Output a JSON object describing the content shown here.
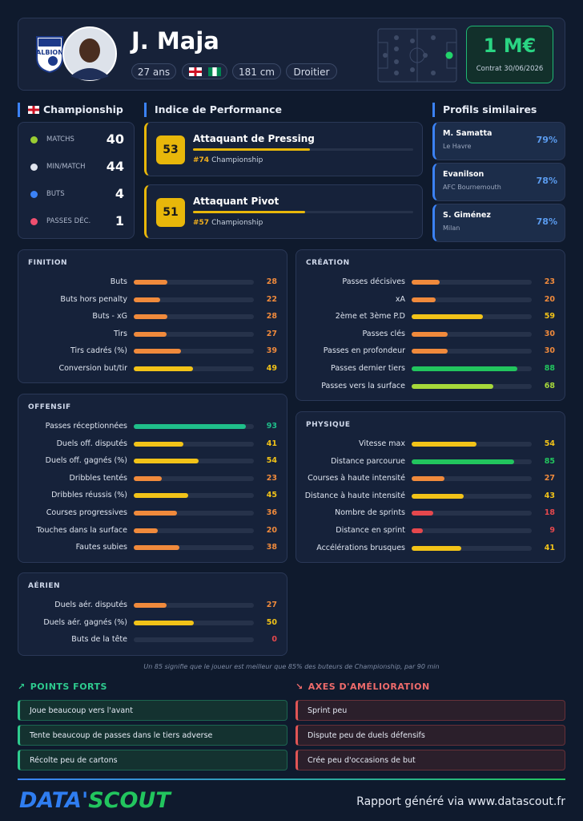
{
  "header": {
    "club_badge": "ALBION",
    "name": "J. Maja",
    "age": "27 ans",
    "height": "181 cm",
    "foot": "Droitier",
    "value": "1 M€",
    "contract": "Contrat 30/06/2026"
  },
  "league": {
    "title": "Championship",
    "stats": [
      {
        "label": "MATCHS",
        "value": 40
      },
      {
        "label": "MIN/MATCH",
        "value": 44
      },
      {
        "label": "BUTS",
        "value": 4
      },
      {
        "label": "PASSES DÉC.",
        "value": 1
      }
    ]
  },
  "performance": {
    "title": "Indice de Performance",
    "roles": [
      {
        "name": "Attaquant de Pressing",
        "score": 53,
        "rank": "#74",
        "league": "Championship"
      },
      {
        "name": "Attaquant Pivot",
        "score": 51,
        "rank": "#57",
        "league": "Championship"
      }
    ]
  },
  "similar": {
    "title": "Profils similaires",
    "players": [
      {
        "name": "M. Samatta",
        "club": "Le Havre",
        "similarity": "79%"
      },
      {
        "name": "Evanilson",
        "club": "AFC Bournemouth",
        "similarity": "78%"
      },
      {
        "name": "S. Giménez",
        "club": "Milan",
        "similarity": "78%"
      }
    ]
  },
  "sections": [
    {
      "title": "FINITION",
      "rows": [
        {
          "label": "Buts",
          "value": 28
        },
        {
          "label": "Buts hors penalty",
          "value": 22
        },
        {
          "label": "Buts - xG",
          "value": 28
        },
        {
          "label": "Tirs",
          "value": 27
        },
        {
          "label": "Tirs cadrés (%)",
          "value": 39
        },
        {
          "label": "Conversion but/tir",
          "value": 49
        }
      ]
    },
    {
      "title": "CRÉATION",
      "rows": [
        {
          "label": "Passes décisives",
          "value": 23
        },
        {
          "label": "xA",
          "value": 20
        },
        {
          "label": "2ème et 3ème P.D",
          "value": 59
        },
        {
          "label": "Passes clés",
          "value": 30
        },
        {
          "label": "Passes en profondeur",
          "value": 30
        },
        {
          "label": "Passes dernier tiers",
          "value": 88
        },
        {
          "label": "Passes vers la surface",
          "value": 68
        }
      ]
    },
    {
      "title": "OFFENSIF",
      "rows": [
        {
          "label": "Passes réceptionnées",
          "value": 93
        },
        {
          "label": "Duels off. disputés",
          "value": 41
        },
        {
          "label": "Duels off. gagnés (%)",
          "value": 54
        },
        {
          "label": "Dribbles tentés",
          "value": 23
        },
        {
          "label": "Dribbles réussis (%)",
          "value": 45
        },
        {
          "label": "Courses progressives",
          "value": 36
        },
        {
          "label": "Touches dans la surface",
          "value": 20
        },
        {
          "label": "Fautes subies",
          "value": 38
        }
      ]
    },
    {
      "title": "PHYSIQUE",
      "rows": [
        {
          "label": "Vitesse max",
          "value": 54
        },
        {
          "label": "Distance parcourue",
          "value": 85
        },
        {
          "label": "Courses à haute intensité",
          "value": 27
        },
        {
          "label": "Distance à haute intensité",
          "value": 43
        },
        {
          "label": "Nombre de sprints",
          "value": 18
        },
        {
          "label": "Distance en sprint",
          "value": 9
        },
        {
          "label": "Accélérations brusques",
          "value": 41
        }
      ]
    },
    {
      "title": "AÉRIEN",
      "rows": [
        {
          "label": "Duels aér. disputés",
          "value": 27
        },
        {
          "label": "Duels aér. gagnés (%)",
          "value": 50
        },
        {
          "label": "Buts de la tête",
          "value": 0
        }
      ]
    }
  ],
  "note": "Un 85 signifie que le joueur est meilleur que 85% des buteurs de Championship, par 90 min",
  "strengths": {
    "title": "POINTS FORTS",
    "items": [
      "Joue beaucoup vers l'avant",
      "Tente beaucoup de passes dans le tiers adverse",
      "Récolte peu de cartons"
    ]
  },
  "improvements": {
    "title": "AXES D'AMÉLIORATION",
    "items": [
      "Sprint peu",
      "Dispute peu de duels défensifs",
      "Crée peu d'occasions de but"
    ]
  },
  "footer": {
    "logo_part1": "DATA'",
    "logo_part2": "SCOUT",
    "credit": "Rapport généré via www.datascout.fr"
  }
}
